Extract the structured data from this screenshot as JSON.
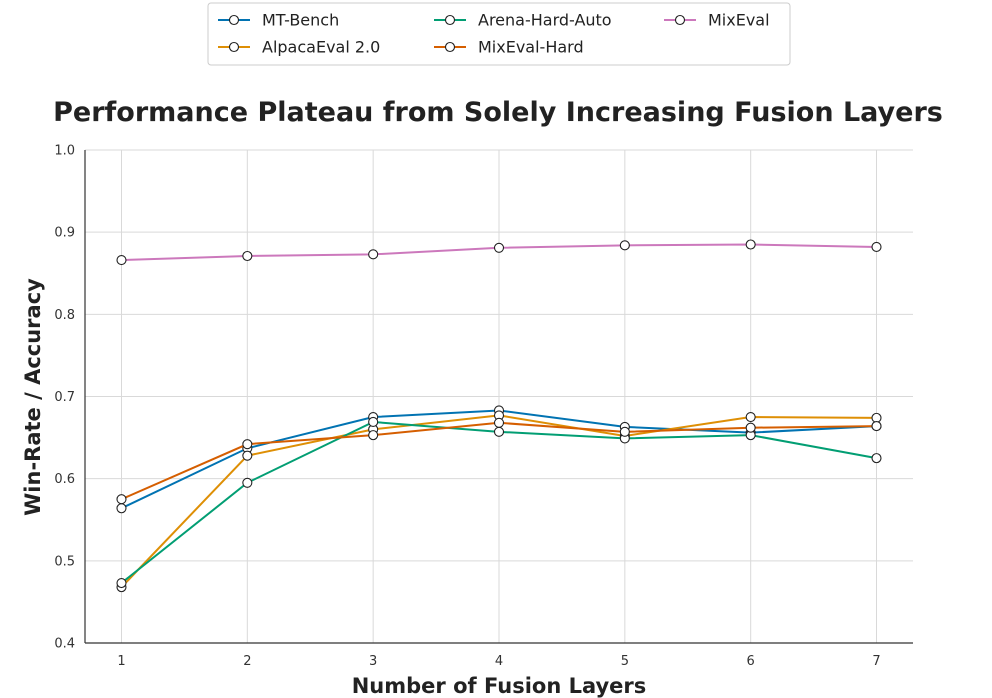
{
  "chart_data": {
    "type": "line",
    "title": "Performance Plateau from Solely Increasing Fusion Layers",
    "xlabel": "Number of Fusion Layers",
    "ylabel": "Win-Rate / Accuracy",
    "x": [
      1,
      2,
      3,
      4,
      5,
      6,
      7
    ],
    "x_tick_labels": [
      "1",
      "2",
      "3",
      "4",
      "5",
      "6",
      "7"
    ],
    "ylim": [
      0.4,
      1.0
    ],
    "y_ticks": [
      0.4,
      0.5,
      0.6,
      0.7,
      0.8,
      0.9,
      1.0
    ],
    "y_tick_labels": [
      "0.4",
      "0.5",
      "0.6",
      "0.7",
      "0.8",
      "0.9",
      "1.0"
    ],
    "grid": true,
    "legend_position": "top-center",
    "marker": "hollow-circle",
    "series": [
      {
        "name": "MT-Bench",
        "color": "#0173b2",
        "values": [
          0.564,
          0.637,
          0.675,
          0.683,
          0.663,
          0.656,
          0.664
        ]
      },
      {
        "name": "AlpacaEval 2.0",
        "color": "#de8f05",
        "values": [
          0.468,
          0.628,
          0.66,
          0.677,
          0.652,
          0.675,
          0.674
        ]
      },
      {
        "name": "Arena-Hard-Auto",
        "color": "#029e73",
        "values": [
          0.473,
          0.595,
          0.669,
          0.657,
          0.649,
          0.653,
          0.625
        ]
      },
      {
        "name": "MixEval-Hard",
        "color": "#d55e00",
        "values": [
          0.575,
          0.642,
          0.653,
          0.668,
          0.657,
          0.662,
          0.664
        ]
      },
      {
        "name": "MixEval",
        "color": "#cc78bc",
        "values": [
          0.866,
          0.871,
          0.873,
          0.881,
          0.884,
          0.885,
          0.882
        ]
      }
    ]
  }
}
